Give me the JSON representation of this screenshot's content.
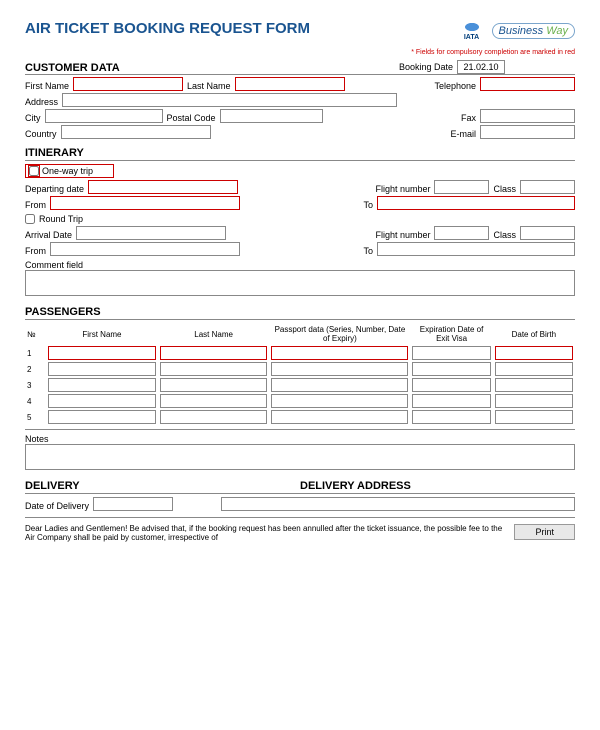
{
  "title": "AIR TICKET BOOKING REQUEST FORM",
  "logos": {
    "iata": "IATA",
    "bw_business": "Business",
    "bw_way": " Way"
  },
  "note": "* Fields for compulsory completion are marked in red",
  "customer": {
    "heading": "CUSTOMER DATA",
    "booking_label": "Booking Date",
    "booking_value": "21.02.10",
    "first_name": "First Name",
    "last_name": "Last Name",
    "telephone": "Telephone",
    "address": "Address",
    "city": "City",
    "postal": "Postal Code",
    "fax": "Fax",
    "country": "Country",
    "email": "E-mail"
  },
  "itinerary": {
    "heading": "ITINERARY",
    "oneway": "One-way trip",
    "departing": "Departing date",
    "flight": "Flight number",
    "class": "Class",
    "from": "From",
    "to": "To",
    "round": "Round Trip",
    "arrival": "Arrival Date",
    "comment": "Comment field"
  },
  "passengers": {
    "heading": "PASSENGERS",
    "no": "№",
    "first": "First Name",
    "last": "Last Name",
    "passport": "Passport data (Series, Number, Date of Expiry)",
    "exit": "Expiration Date of Exit Visa",
    "dob": "Date of Birth",
    "notes": "Notes",
    "rows": [
      "1",
      "2",
      "3",
      "4",
      "5"
    ]
  },
  "delivery": {
    "h1": "DELIVERY",
    "h2": "DELIVERY ADDRESS",
    "date": "Date of Delivery"
  },
  "footer": "Dear Ladies and Gentlemen! Be advised that, if the booking request has been annulled after the ticket issuance, the possible fee to the Air Company shall be paid by customer, irrespective of",
  "print": "Print"
}
